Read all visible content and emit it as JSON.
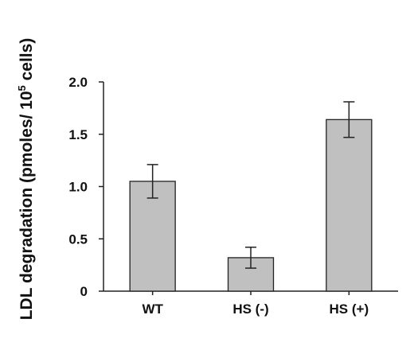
{
  "chart_data": {
    "type": "bar",
    "title": "",
    "xlabel": "",
    "ylabel": "LDL degradation (pmoles/ 10",
    "ylabel_exponent": "5",
    "ylabel_suffix": " cells)",
    "categories": [
      "WT",
      "HS (-)",
      "HS (+)"
    ],
    "values": [
      1.05,
      0.32,
      1.64
    ],
    "errors": [
      0.16,
      0.1,
      0.17
    ],
    "ylim": [
      0,
      2.0
    ],
    "yticks": [
      "0",
      "0.5",
      "1.0",
      "1.5",
      "2.0"
    ],
    "grid": false,
    "bar_color": "#c0c0c0"
  }
}
